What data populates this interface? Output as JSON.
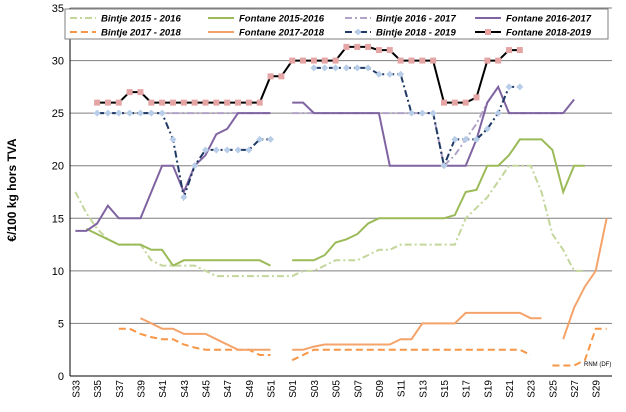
{
  "chart_data": {
    "type": "line",
    "y_label": "€/100 kg hors TVA",
    "annotation": "RNM (DF)",
    "categories": [
      "S33",
      null,
      "S35",
      null,
      "S37",
      null,
      "S39",
      null,
      "S41",
      null,
      "S43",
      null,
      "S45",
      null,
      "S47",
      null,
      "S49",
      null,
      "S51",
      null,
      "S01",
      null,
      "S03",
      null,
      "S05",
      null,
      "S07",
      null,
      "S09",
      null,
      "S11",
      null,
      "S13",
      null,
      "S15",
      null,
      "S17",
      null,
      "S19",
      null,
      "S21",
      null,
      "S23",
      null,
      "S25",
      null,
      "S27",
      null,
      "S29",
      null
    ],
    "ylim": [
      0,
      35
    ],
    "yticks": [
      0,
      5,
      10,
      15,
      20,
      25,
      30,
      35
    ],
    "grid": true,
    "series": [
      {
        "name": "Bintje 2015 - 2016",
        "color": "#c3d69b",
        "dash": "dashdot",
        "values": [
          17.5,
          15.5,
          14,
          13,
          12.5,
          12.5,
          12.5,
          11,
          10.5,
          10.5,
          10.5,
          10.5,
          10,
          9.5,
          9.5,
          9.5,
          9.5,
          9.5,
          9.5,
          9.5,
          9.5,
          10,
          10,
          10.5,
          11,
          11,
          11,
          11.5,
          12,
          12,
          12.5,
          12.5,
          12.5,
          12.5,
          12.5,
          12.5,
          15,
          16,
          17,
          18.5,
          20,
          20,
          20,
          17.5,
          13.5,
          12,
          10,
          10,
          null,
          null
        ]
      },
      {
        "name": "Fontane 2015-2016",
        "color": "#9bbb59",
        "dash": "solid",
        "values": [
          null,
          14,
          13.5,
          13,
          12.5,
          12.5,
          12.5,
          12,
          12,
          10.5,
          11,
          11,
          11,
          11,
          11,
          11,
          11,
          11,
          10.5,
          null,
          11,
          11,
          11,
          11.5,
          12.7,
          13,
          13.5,
          14.5,
          15,
          15,
          15,
          15,
          15,
          15,
          15,
          15.3,
          17.5,
          17.7,
          20,
          20,
          21,
          22.5,
          22.5,
          22.5,
          21.5,
          17.5,
          20,
          20,
          null,
          null
        ]
      },
      {
        "name": "Bintje 2016 - 2017",
        "color": "#b3a2c7",
        "dash": "dashdot",
        "values": [
          null,
          null,
          25,
          25,
          25,
          25,
          25,
          25,
          25,
          25,
          25,
          25,
          25,
          25,
          25,
          25,
          25,
          25,
          25,
          null,
          25,
          25,
          25,
          25,
          25,
          25,
          25,
          25,
          25,
          25,
          25,
          25,
          25,
          25,
          20,
          21,
          22.5,
          24,
          26,
          27.5,
          25,
          25,
          25,
          25,
          25,
          25,
          null,
          null,
          null,
          null
        ]
      },
      {
        "name": "Fontane 2016-2017",
        "color": "#8064a2",
        "dash": "solid",
        "values": [
          13.8,
          13.8,
          14.5,
          16.2,
          15,
          15,
          15,
          17.5,
          20,
          20,
          17.5,
          20,
          21,
          23,
          23.5,
          25,
          25,
          25,
          25,
          null,
          26,
          26,
          25,
          25,
          25,
          25,
          25,
          25,
          25,
          20,
          20,
          20,
          20,
          20,
          20,
          20,
          20,
          22.5,
          26,
          27.5,
          25,
          25,
          25,
          25,
          25,
          25,
          26.3,
          null,
          null,
          null
        ]
      },
      {
        "name": "Bintje 2017 - 2018",
        "color": "#f79646",
        "dash": "dash",
        "values": [
          null,
          null,
          null,
          null,
          4.5,
          4.5,
          4,
          3.7,
          3.5,
          3.5,
          3,
          2.7,
          2.5,
          2.5,
          2.5,
          2.5,
          2.5,
          2,
          2,
          null,
          1.5,
          2,
          2.5,
          2.5,
          2.5,
          2.5,
          2.5,
          2.5,
          2.5,
          2.5,
          2.5,
          2.5,
          2.5,
          2.5,
          2.5,
          2.5,
          2.5,
          2.5,
          2.5,
          2.5,
          2.5,
          2.5,
          2,
          null,
          1,
          1,
          1,
          1.5,
          4.5,
          4.5
        ]
      },
      {
        "name": "Fontane 2017-2018",
        "color": "#f4a36a",
        "dash": "solid",
        "values": [
          null,
          null,
          null,
          null,
          null,
          null,
          5.5,
          5,
          4.5,
          4.5,
          4,
          4,
          4,
          3.5,
          3,
          2.5,
          2.5,
          2.5,
          2.5,
          null,
          2.5,
          2.5,
          2.8,
          3,
          3,
          3,
          3,
          3,
          3,
          3,
          3.5,
          3.5,
          5,
          5,
          5,
          5,
          6,
          6,
          6,
          6,
          6,
          6,
          5.5,
          5.5,
          null,
          3.5,
          6.5,
          8.5,
          10,
          15
        ]
      },
      {
        "name": "Bintje 2018 - 2019",
        "color": "#1f3864",
        "dash": "dashdot",
        "marker": "diamond",
        "marker_color": "#b7cde8",
        "values": [
          null,
          null,
          25,
          25,
          25,
          25,
          25,
          25,
          25,
          22.5,
          17,
          20,
          21.5,
          21.5,
          21.5,
          21.5,
          21.5,
          22.5,
          22.5,
          null,
          null,
          null,
          29.3,
          29.3,
          29.3,
          29.3,
          29.3,
          29.3,
          28.7,
          28.7,
          28.7,
          25,
          25,
          25,
          20,
          22.5,
          22.5,
          22.5,
          23.5,
          25,
          27.5,
          27.5,
          null,
          null,
          null,
          null,
          null,
          null,
          null,
          null
        ]
      },
      {
        "name": "Fontane 2018-2019",
        "color": "#000000",
        "dash": "solid",
        "marker": "square",
        "marker_color": "#e6a5a5",
        "values": [
          null,
          null,
          26,
          26,
          26,
          27,
          27,
          26,
          26,
          26,
          26,
          26,
          26,
          26,
          26,
          26,
          26,
          26,
          28.5,
          28.5,
          30,
          30,
          30,
          30,
          30,
          31.3,
          31.3,
          31.3,
          31,
          31,
          30,
          30,
          30,
          30,
          26,
          26,
          26,
          26.5,
          30,
          30,
          31,
          31,
          null,
          null,
          null,
          null,
          null,
          null,
          null,
          null
        ]
      }
    ]
  }
}
